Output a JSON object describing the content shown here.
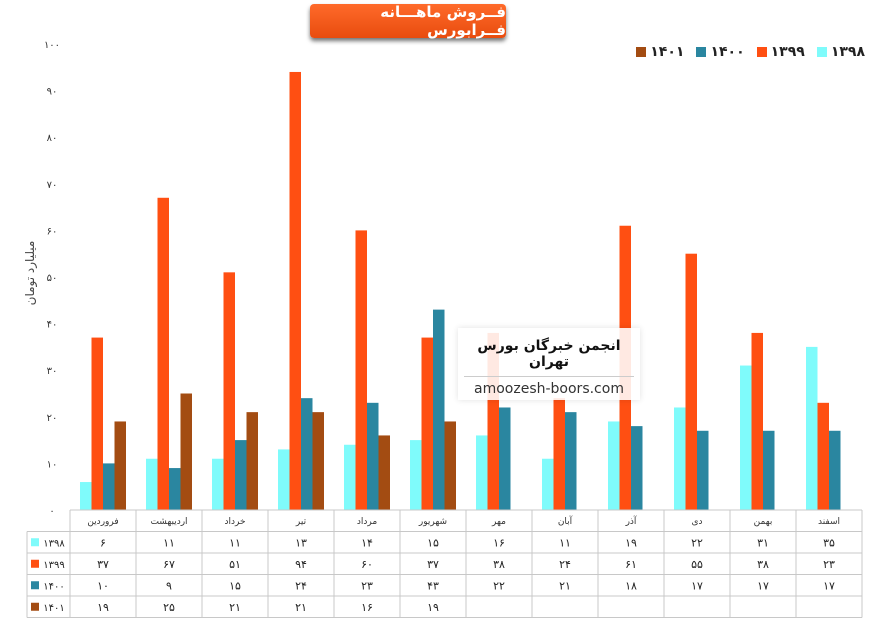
{
  "title": "فــروش ماهـــانه فــرابورس",
  "watermark": {
    "title": "انجمن خبرگان بورس تهران",
    "url": "amoozesh-boors.com"
  },
  "chart_data": {
    "type": "bar",
    "ylabel": "میلیارد تومان",
    "ylim": [
      0,
      100
    ],
    "yticks": [
      "۰",
      "۱۰",
      "۲۰",
      "۳۰",
      "۴۰",
      "۵۰",
      "۶۰",
      "۷۰",
      "۸۰",
      "۹۰",
      "۱۰۰"
    ],
    "grid": false,
    "legend_position": "top-right",
    "categories": [
      "فروردین",
      "اردیبهشت",
      "خرداد",
      "تیر",
      "مرداد",
      "شهریور",
      "مهر",
      "آبان",
      "آذر",
      "دی",
      "بهمن",
      "اسفند"
    ],
    "series": [
      {
        "name": "۱۳۹۸",
        "color": "#7ffbfb",
        "values": [
          6,
          11,
          11,
          13,
          14,
          15,
          16,
          11,
          19,
          22,
          31,
          35
        ],
        "labels": [
          "۶",
          "۱۱",
          "۱۱",
          "۱۳",
          "۱۴",
          "۱۵",
          "۱۶",
          "۱۱",
          "۱۹",
          "۲۲",
          "۳۱",
          "۳۵"
        ]
      },
      {
        "name": "۱۳۹۹",
        "color": "#ff4f12",
        "values": [
          37,
          67,
          51,
          94,
          60,
          37,
          38,
          24,
          61,
          55,
          38,
          23
        ],
        "labels": [
          "۳۷",
          "۶۷",
          "۵۱",
          "۹۴",
          "۶۰",
          "۳۷",
          "۳۸",
          "۲۴",
          "۶۱",
          "۵۵",
          "۳۸",
          "۲۳"
        ]
      },
      {
        "name": "۱۴۰۰",
        "color": "#2a86a0",
        "values": [
          10,
          9,
          15,
          24,
          23,
          43,
          22,
          21,
          18,
          17,
          17,
          17
        ],
        "labels": [
          "۱۰",
          "۹",
          "۱۵",
          "۲۴",
          "۲۳",
          "۴۳",
          "۲۲",
          "۲۱",
          "۱۸",
          "۱۷",
          "۱۷",
          "۱۷"
        ]
      },
      {
        "name": "۱۴۰۱",
        "color": "#a34c12",
        "values": [
          19,
          25,
          21,
          21,
          16,
          19,
          null,
          null,
          null,
          null,
          null,
          null
        ],
        "labels": [
          "۱۹",
          "۲۵",
          "۲۱",
          "۲۱",
          "۱۶",
          "۱۹",
          "",
          "",
          "",
          "",
          "",
          ""
        ]
      }
    ]
  }
}
